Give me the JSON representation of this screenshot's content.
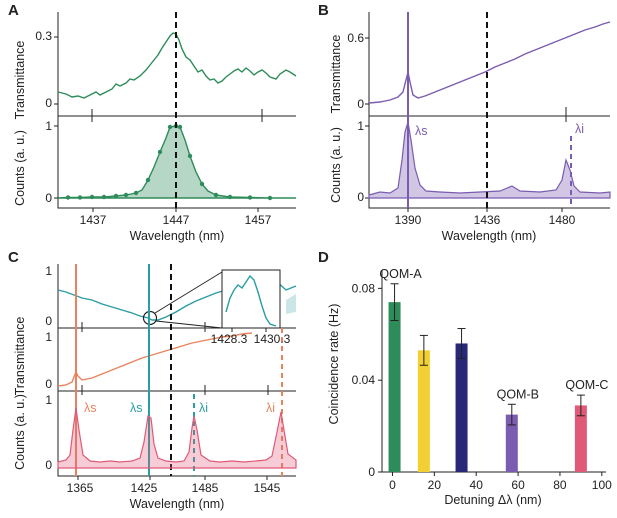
{
  "figure": {
    "panels": [
      "A",
      "B",
      "C",
      "D"
    ],
    "colors": {
      "green": "#2e8b5a",
      "purple": "#7a5cb0",
      "teal": "#2a9da3",
      "orange": "#e8835e",
      "pink": "#e05a78",
      "yellow": "#f2cf32",
      "navy": "#272878",
      "dashed": "#111111"
    }
  },
  "panelA": {
    "letter": "A",
    "top_ylabel": "Transmittance",
    "bottom_ylabel": "Counts (a. u.)",
    "xlabel": "Wavelength (nm)",
    "top_yticks": [
      "0.3",
      "0"
    ],
    "bottom_yticks": [
      "1",
      "0"
    ],
    "xticks": [
      "1437",
      "1447",
      "1457"
    ]
  },
  "panelB": {
    "letter": "B",
    "top_ylabel": "Transmittance",
    "bottom_ylabel": "Counts (a. u.)",
    "xlabel": "Wavelength (nm)",
    "top_yticks": [
      "0.6",
      "0"
    ],
    "bottom_yticks": [
      "1",
      "0"
    ],
    "xticks": [
      "1390",
      "1436",
      "1480"
    ],
    "annotations": [
      "λs",
      "λi"
    ]
  },
  "panelC": {
    "letter": "C",
    "top_ylabel": "Transmittance",
    "bottom_ylabel": "Counts (a. u.)",
    "xlabel": "Wavelength (nm)",
    "top_yticks": [
      "1",
      "0"
    ],
    "mid_yticks": [
      "1",
      "0"
    ],
    "bottom_yticks": [
      "1",
      "0"
    ],
    "xticks": [
      "1365",
      "1425",
      "1485",
      "1545"
    ],
    "inset_xticks": [
      "1428.3",
      "1430.3"
    ],
    "annotations": [
      "λs",
      "λs",
      "λi",
      "λi"
    ]
  },
  "chart_data": {
    "type": "bar",
    "title": "D",
    "xlabel": "Detuning Δλ (nm)",
    "ylabel": "Coincidence rate (Hz)",
    "xlim": [
      -5,
      102
    ],
    "ylim": [
      0,
      0.088
    ],
    "xticks": [
      "0",
      "20",
      "40",
      "60",
      "80",
      "100"
    ],
    "yticks": [
      "0",
      "0.04",
      "0.08"
    ],
    "bars": [
      {
        "x": 1,
        "value": 0.074,
        "err": 0.008,
        "color": "#2e8b5a",
        "label": "QOM-A"
      },
      {
        "x": 15,
        "value": 0.053,
        "err": 0.0065,
        "color": "#f2cf32",
        "label": ""
      },
      {
        "x": 33,
        "value": 0.056,
        "err": 0.0065,
        "color": "#272878",
        "label": ""
      },
      {
        "x": 57,
        "value": 0.025,
        "err": 0.0045,
        "color": "#7a5cb0",
        "label": "QOM-B"
      },
      {
        "x": 90,
        "value": 0.029,
        "err": 0.0045,
        "color": "#e05a78",
        "label": "QOM-C"
      }
    ]
  }
}
